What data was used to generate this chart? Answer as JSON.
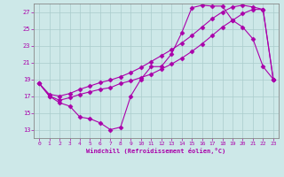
{
  "xlabel": "Windchill (Refroidissement éolien,°C)",
  "xlim": [
    -0.5,
    23.5
  ],
  "ylim": [
    12,
    28
  ],
  "xticks": [
    0,
    1,
    2,
    3,
    4,
    5,
    6,
    7,
    8,
    9,
    10,
    11,
    12,
    13,
    14,
    15,
    16,
    17,
    18,
    19,
    20,
    21,
    22,
    23
  ],
  "yticks": [
    13,
    15,
    17,
    19,
    21,
    23,
    25,
    27
  ],
  "bg_color": "#cde8e8",
  "line_color": "#aa00aa",
  "grid_color": "#aacccc",
  "line1_x": [
    0,
    1,
    2,
    3,
    4,
    5,
    6,
    7,
    8,
    9,
    10,
    11,
    12,
    13,
    14,
    15,
    16,
    17,
    18,
    19,
    20,
    21,
    22,
    23
  ],
  "line1_y": [
    18.5,
    17.0,
    16.2,
    15.8,
    14.5,
    14.3,
    13.8,
    13.0,
    13.3,
    17.0,
    19.0,
    20.5,
    20.5,
    22.0,
    24.5,
    27.5,
    27.8,
    27.7,
    27.7,
    26.0,
    25.2,
    23.8,
    20.5,
    19.0
  ],
  "line2_x": [
    0,
    1,
    2,
    3,
    4,
    5,
    6,
    7,
    8,
    9,
    10,
    11,
    12,
    13,
    14,
    15,
    16,
    17,
    18,
    19,
    20,
    21,
    22,
    23
  ],
  "line2_y": [
    18.5,
    17.0,
    16.5,
    16.8,
    17.2,
    17.5,
    17.8,
    18.0,
    18.5,
    18.8,
    19.2,
    19.6,
    20.2,
    20.8,
    21.5,
    22.3,
    23.2,
    24.2,
    25.2,
    26.0,
    26.8,
    27.3,
    27.3,
    19.0
  ],
  "line3_x": [
    0,
    1,
    2,
    3,
    4,
    5,
    6,
    7,
    8,
    9,
    10,
    11,
    12,
    13,
    14,
    15,
    16,
    17,
    18,
    19,
    20,
    21,
    22,
    23
  ],
  "line3_y": [
    18.5,
    17.2,
    17.0,
    17.3,
    17.8,
    18.2,
    18.6,
    18.9,
    19.3,
    19.8,
    20.4,
    21.1,
    21.8,
    22.5,
    23.3,
    24.2,
    25.2,
    26.2,
    27.0,
    27.6,
    27.8,
    27.6,
    27.3,
    19.0
  ]
}
